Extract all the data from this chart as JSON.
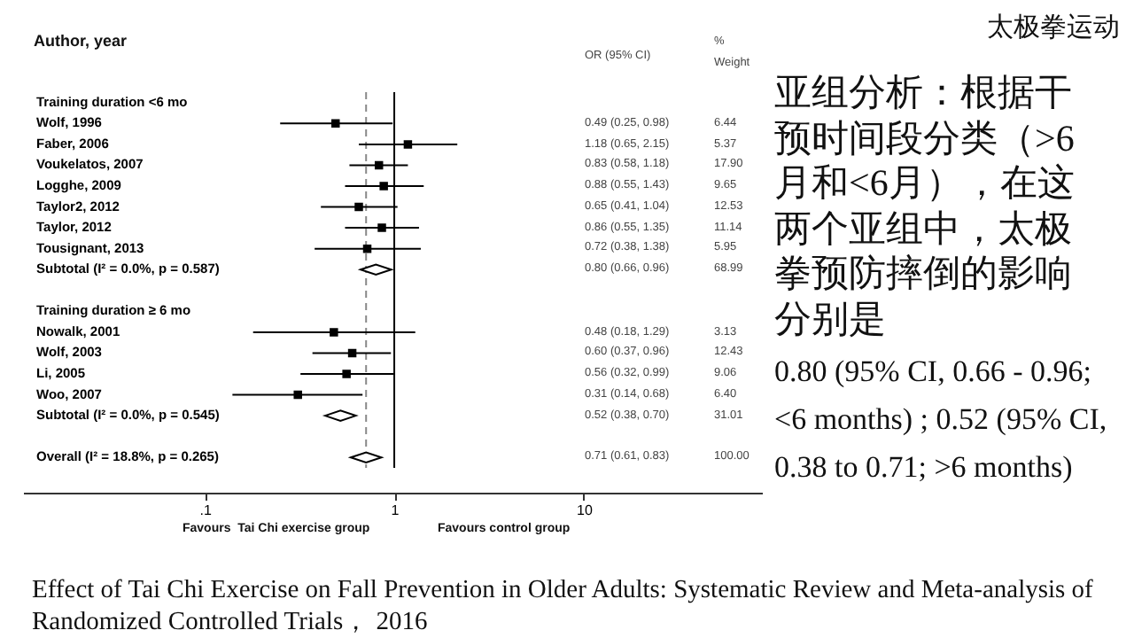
{
  "chart_data": {
    "type": "scatter",
    "orientation": "horizontal",
    "ylabel": "Author, year",
    "categories": [
      "Training duration <6 mo",
      "Wolf, 1996",
      "Faber, 2006",
      "Voukelatos, 2007",
      "Logghe, 2009",
      "Taylor2, 2012",
      "Taylor, 2012",
      "Tousignant, 2013",
      "Subtotal  (I² = 0.0%, p = 0.587)",
      null,
      "Training duration ≥ 6 mo",
      "Nowalk, 2001",
      "Wolf, 2003",
      "Li, 2005",
      "Woo, 2007",
      "Subtotal  (I² = 0.0%, p = 0.545)",
      null,
      "Overall  (I² = 18.8%, p = 0.265)"
    ],
    "series": [
      {
        "color": "#000000",
        "marker": "square",
        "values": [
          null,
          0.49,
          1.18,
          0.83,
          0.88,
          0.65,
          0.86,
          0.72,
          null,
          null,
          null,
          0.48,
          0.6,
          0.56,
          0.31,
          null,
          null,
          null
        ],
        "errors": [
          null,
          [
            0.25,
            0.98
          ],
          [
            0.65,
            2.15
          ],
          [
            0.58,
            1.18
          ],
          [
            0.55,
            1.43
          ],
          [
            0.41,
            1.04
          ],
          [
            0.55,
            1.35
          ],
          [
            0.38,
            1.38
          ],
          null,
          null,
          null,
          [
            0.18,
            1.29
          ],
          [
            0.37,
            0.96
          ],
          [
            0.32,
            0.99
          ],
          [
            0.14,
            0.68
          ],
          null,
          null,
          null
        ]
      },
      {
        "color": "#000000",
        "marker": "diamond",
        "values": [
          null,
          null,
          null,
          null,
          null,
          null,
          null,
          null,
          0.8,
          null,
          null,
          null,
          null,
          null,
          null,
          0.52,
          null,
          0.71
        ]
      }
    ],
    "log": "x",
    "xlim": [
      0.011,
      87
    ],
    "xticks": [
      {
        "value": 0.1,
        "label": ".1"
      },
      1,
      10
    ],
    "ref_lines": [
      {
        "axis": "x",
        "value": 1,
        "color": "#000000",
        "line_style": "solid"
      },
      {
        "axis": "x",
        "value": 0.71,
        "color": "#888888",
        "line_style": "dashed"
      }
    ],
    "annotations": [
      "太极拳运动",
      "亚组分析：根据干预时间段分类（>6月和<6月），在这两个亚组中，太极拳预防摔倒的影响分别是",
      "0.80 (95% CI, 0.66 - 0.96; <6 months) ; 0.52 (95% CI, 0.38 to 0.71; >6 months)",
      "OR (95% CI)",
      "% Weight",
      "Favours  Tai Chi exercise group",
      "Favours control group",
      "Effect of Tai Chi Exercise on Fall Prevention in Older Adults: Systematic Review and Meta-analysis of Randomized Controlled Trials， 2016",
      "\n0.49 (0.25, 0.98)\n1.18 (0.65, 2.15)\n0.83 (0.58, 1.18)\n0.88 (0.55, 1.43)\n0.65 (0.41, 1.04)\n0.86 (0.55, 1.35)\n0.72 (0.38, 1.38)\n0.80 (0.66, 0.96)\n\n\n0.48 (0.18, 1.29)\n0.60 (0.37, 0.96)\n0.56 (0.32, 0.99)\n0.31 (0.14, 0.68)\n0.52 (0.38, 0.70)\n\n0.71 (0.61, 0.83)",
      "\n6.44\n5.37\n17.90\n9.65\n12.53\n11.14\n5.95\n68.99\n\n\n3.13\n12.43\n9.06\n6.40\n31.01\n\n100.00"
    ]
  }
}
